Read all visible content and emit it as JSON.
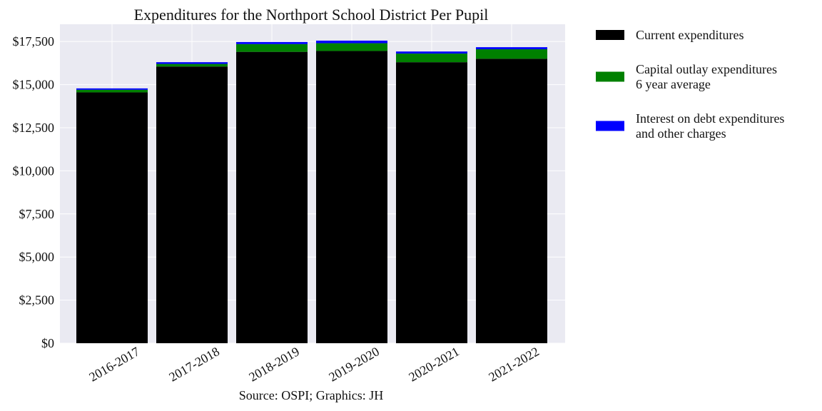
{
  "chart_data": {
    "type": "bar",
    "stacked": true,
    "title": "Expenditures for the Northport School District Per Pupil",
    "source": "Source: OSPI; Graphics: JH",
    "categories": [
      "2016-2017",
      "2017-2018",
      "2018-2019",
      "2019-2020",
      "2020-2021",
      "2021-2022"
    ],
    "series": [
      {
        "name": "Current expenditures",
        "color": "#000000",
        "values": [
          14550,
          16050,
          16900,
          16950,
          16300,
          16500
        ]
      },
      {
        "name": "Capital outlay expenditures\n6 year average",
        "color": "#008000",
        "values": [
          150,
          150,
          450,
          450,
          500,
          550
        ]
      },
      {
        "name": "Interest on debt expenditures\nand other charges",
        "color": "#0000ff",
        "values": [
          80,
          100,
          120,
          150,
          120,
          120
        ]
      }
    ],
    "ylim": [
      0,
      18500
    ],
    "yticks": [
      0,
      2500,
      5000,
      7500,
      10000,
      12500,
      15000,
      17500
    ],
    "ytick_labels": [
      "$0",
      "$2,500",
      "$5,000",
      "$7,500",
      "$10,000",
      "$12,500",
      "$15,000",
      "$17,500"
    ],
    "grid": true,
    "background_color": "#eaeaf2",
    "legend_position": "outside-right"
  }
}
